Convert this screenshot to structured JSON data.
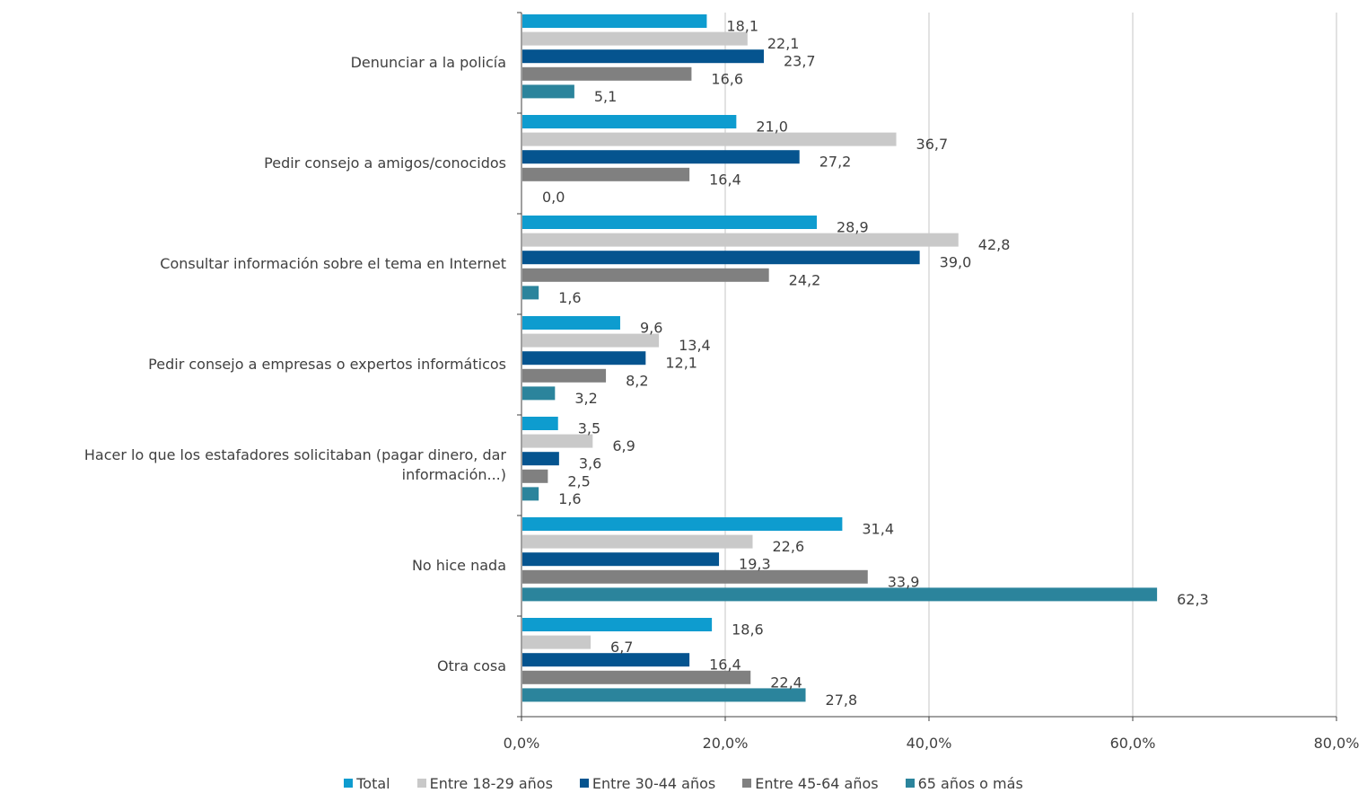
{
  "chart_data": {
    "type": "bar",
    "orientation": "horizontal",
    "categories": [
      "Denunciar a la policía",
      "Pedir consejo a amigos/conocidos",
      "Consultar información sobre el tema en Internet",
      "Pedir consejo a empresas o expertos informáticos",
      "Hacer lo que los estafadores solicitaban (pagar dinero, dar información...)",
      "No hice nada",
      "Otra cosa"
    ],
    "series": [
      {
        "name": "Total",
        "color": "#0e9ccf",
        "values": [
          18.1,
          21.0,
          28.9,
          9.6,
          3.5,
          31.4,
          18.6
        ],
        "labels": [
          "18,1",
          "21,0",
          "28,9",
          "9,6",
          "3,5",
          "31,4",
          "18,6"
        ]
      },
      {
        "name": "Entre 18-29 años",
        "color": "#c9c9c9",
        "values": [
          22.1,
          36.7,
          42.8,
          13.4,
          6.9,
          22.6,
          6.7
        ],
        "labels": [
          "22,1",
          "36,7",
          "42,8",
          "13,4",
          "6,9",
          "22,6",
          "6,7"
        ]
      },
      {
        "name": "Entre 30-44 años",
        "color": "#05548f",
        "values": [
          23.7,
          27.2,
          39.0,
          12.1,
          3.6,
          19.3,
          16.4
        ],
        "labels": [
          "23,7",
          "27,2",
          "39,0",
          "12,1",
          "3,6",
          "19,3",
          "16,4"
        ]
      },
      {
        "name": "Entre 45-64 años",
        "color": "#808080",
        "values": [
          16.6,
          16.4,
          24.2,
          8.2,
          2.5,
          33.9,
          22.4
        ],
        "labels": [
          "16,6",
          "16,4",
          "24,2",
          "8,2",
          "2,5",
          "33,9",
          "22,4"
        ]
      },
      {
        "name": "65 años o más",
        "color": "#2b849c",
        "values": [
          5.1,
          0.0,
          1.6,
          3.2,
          1.6,
          62.3,
          27.8
        ],
        "labels": [
          "5,1",
          "0,0",
          "1,6",
          "3,2",
          "1,6",
          "62,3",
          "27,8"
        ]
      }
    ],
    "xlim": [
      0,
      80
    ],
    "xticks": [
      0,
      20,
      40,
      60,
      80
    ],
    "xtick_labels": [
      "0,0%",
      "20,0%",
      "40,0%",
      "60,0%",
      "80,0%"
    ],
    "grid": true,
    "legend_position": "bottom"
  }
}
